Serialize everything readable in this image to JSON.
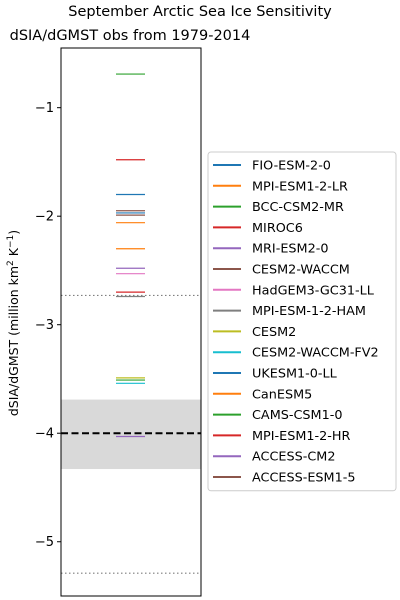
{
  "chart_data": {
    "type": "scatter",
    "title": "September Arctic Sea Ice Sensitivity",
    "subtitle": "dSIA/dGMST obs from 1979-2014",
    "ylabel_main": "dSIA/dGMST (million km",
    "ylabel_sup1": "2",
    "ylabel_mid": " K",
    "ylabel_sup2": "−1",
    "ylabel_end": ")",
    "ylim": [
      -5.5,
      -0.45
    ],
    "yticks": [
      {
        "value": -1,
        "label": "−1"
      },
      {
        "value": -2,
        "label": "−2"
      },
      {
        "value": -3,
        "label": "−3"
      },
      {
        "value": -4,
        "label": "−4"
      },
      {
        "value": -5,
        "label": "−5"
      }
    ],
    "observation": {
      "mean": -4.0,
      "band": [
        -4.33,
        -3.69
      ],
      "dotted_lines": [
        -2.73,
        -5.29
      ]
    },
    "legend_placement": "right",
    "series": [
      {
        "name": "FIO-ESM-2-0",
        "value": -1.97,
        "color": "#1f77b4"
      },
      {
        "name": "MPI-ESM1-2-LR",
        "value": -2.3,
        "color": "#ff7f0e"
      },
      {
        "name": "BCC-CSM2-MR",
        "value": -0.69,
        "color": "#2ca02c"
      },
      {
        "name": "MIROC6",
        "value": -1.48,
        "color": "#d62728"
      },
      {
        "name": "MRI-ESM2-0",
        "value": -2.48,
        "color": "#9467bd"
      },
      {
        "name": "CESM2-WACCM",
        "value": -1.99,
        "color": "#8c564b"
      },
      {
        "name": "HadGEM3-GC31-LL",
        "value": -2.53,
        "color": "#e377c2"
      },
      {
        "name": "MPI-ESM-1-2-HAM",
        "value": -2.74,
        "color": "#7f7f7f"
      },
      {
        "name": "CESM2",
        "value": -3.49,
        "color": "#bcbd22"
      },
      {
        "name": "CESM2-WACCM-FV2",
        "value": -3.54,
        "color": "#17becf"
      },
      {
        "name": "UKESM1-0-LL",
        "value": -1.8,
        "color": "#1f77b4"
      },
      {
        "name": "CanESM5",
        "value": -2.06,
        "color": "#ff7f0e"
      },
      {
        "name": "CAMS-CSM1-0",
        "value": -3.51,
        "color": "#2ca02c"
      },
      {
        "name": "MPI-ESM1-2-HR",
        "value": -2.7,
        "color": "#d62728"
      },
      {
        "name": "ACCESS-CM2",
        "value": -4.03,
        "color": "#9467bd"
      },
      {
        "name": "ACCESS-ESM1-5",
        "value": -1.95,
        "color": "#8c564b"
      }
    ]
  }
}
